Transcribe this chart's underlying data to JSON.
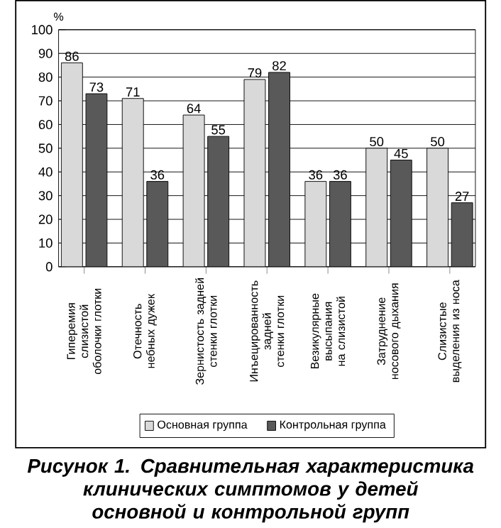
{
  "chart_data": {
    "type": "bar",
    "title": "Рисунок 1. Сравнительная характеристика клинических симптомов у детей основной и контрольной групп",
    "ylabel": "%",
    "categories": [
      "Гиперемия слизистой оболочки глотки",
      "Отечность небных дужек",
      "Зернистость задней стенки глотки",
      "Инъецированность задней стенки глотки",
      "Везикулярные высыпания на слизистой",
      "Затруднение носового дыхания",
      "Слизистые выделения из носа"
    ],
    "series": [
      {
        "name": "Основная группа",
        "color": "#d9d9d9",
        "values": [
          86,
          71,
          64,
          79,
          36,
          50,
          50
        ]
      },
      {
        "name": "Контрольная группа",
        "color": "#595959",
        "values": [
          73,
          36,
          55,
          82,
          36,
          45,
          27
        ]
      }
    ],
    "ylim": [
      0,
      100
    ],
    "yticks": [
      0,
      10,
      20,
      30,
      40,
      50,
      60,
      70,
      80,
      90,
      100
    ],
    "grid": "y",
    "legend": "bottom",
    "data_labels": true
  }
}
